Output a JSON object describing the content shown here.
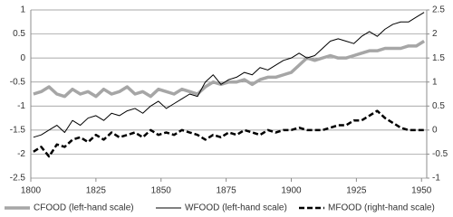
{
  "chart_data": {
    "type": "line",
    "x": [
      1801,
      1804,
      1807,
      1810,
      1813,
      1816,
      1819,
      1822,
      1825,
      1828,
      1831,
      1834,
      1837,
      1840,
      1843,
      1846,
      1849,
      1852,
      1855,
      1858,
      1861,
      1864,
      1867,
      1870,
      1873,
      1876,
      1879,
      1882,
      1885,
      1888,
      1891,
      1894,
      1897,
      1900,
      1903,
      1906,
      1909,
      1912,
      1915,
      1918,
      1921,
      1924,
      1927,
      1930,
      1933,
      1936,
      1939,
      1942,
      1945,
      1948,
      1951
    ],
    "series": [
      {
        "name": "CFOOD (left-hand scale)",
        "color": "#a6a6a6",
        "dashed": false,
        "values": [
          -0.75,
          -0.7,
          -0.6,
          -0.75,
          -0.8,
          -0.65,
          -0.75,
          -0.7,
          -0.8,
          -0.65,
          -0.75,
          -0.7,
          -0.6,
          -0.75,
          -0.7,
          -0.8,
          -0.65,
          -0.7,
          -0.75,
          -0.65,
          -0.7,
          -0.75,
          -0.6,
          -0.5,
          -0.55,
          -0.5,
          -0.5,
          -0.45,
          -0.55,
          -0.45,
          -0.4,
          -0.4,
          -0.35,
          -0.3,
          -0.15,
          0.0,
          -0.05,
          0.0,
          0.05,
          0.0,
          0.0,
          0.05,
          0.1,
          0.15,
          0.15,
          0.2,
          0.2,
          0.2,
          0.25,
          0.25,
          0.35
        ]
      },
      {
        "name": "WFOOD (left-hand scale)",
        "color": "#000000",
        "dashed": false,
        "values": [
          -1.65,
          -1.6,
          -1.5,
          -1.4,
          -1.55,
          -1.3,
          -1.4,
          -1.25,
          -1.2,
          -1.3,
          -1.15,
          -1.2,
          -1.1,
          -1.05,
          -1.15,
          -1.0,
          -0.9,
          -1.05,
          -0.95,
          -0.85,
          -0.75,
          -0.8,
          -0.5,
          -0.35,
          -0.55,
          -0.45,
          -0.4,
          -0.3,
          -0.35,
          -0.2,
          -0.25,
          -0.15,
          -0.05,
          0.0,
          0.1,
          0.0,
          0.05,
          0.2,
          0.35,
          0.4,
          0.35,
          0.3,
          0.45,
          0.55,
          0.45,
          0.6,
          0.7,
          0.75,
          0.75,
          0.85,
          0.95
        ]
      },
      {
        "name": "MFOOD (right-hand scale)",
        "color": "#000000",
        "dashed": true,
        "axis": "y2",
        "values": [
          -0.45,
          -0.35,
          -0.55,
          -0.3,
          -0.35,
          -0.2,
          -0.15,
          -0.25,
          -0.1,
          -0.2,
          -0.05,
          -0.15,
          -0.1,
          -0.05,
          -0.15,
          0.0,
          -0.1,
          -0.05,
          -0.1,
          0.0,
          -0.05,
          -0.1,
          -0.2,
          -0.1,
          -0.15,
          -0.05,
          -0.1,
          0.0,
          -0.05,
          -0.1,
          0.0,
          -0.05,
          0.0,
          0.0,
          0.05,
          0.0,
          0.0,
          0.0,
          0.05,
          0.1,
          0.1,
          0.2,
          0.2,
          0.3,
          0.4,
          0.25,
          0.15,
          0.05,
          0.0,
          0.0,
          0.0
        ]
      }
    ],
    "xlim": [
      1800,
      1952
    ],
    "xticks": [
      1800,
      1825,
      1850,
      1875,
      1900,
      1925,
      1950
    ],
    "ylim": [
      -2.5,
      1
    ],
    "yticks": [
      -2.5,
      -2,
      -1.5,
      -1,
      -0.5,
      0,
      0.5,
      1
    ],
    "y2lim": [
      -1,
      2.5
    ],
    "y2ticks": [
      -1,
      -0.5,
      0,
      0.5,
      1,
      1.5,
      2,
      2.5
    ],
    "grid": true,
    "legend": "bottom"
  }
}
